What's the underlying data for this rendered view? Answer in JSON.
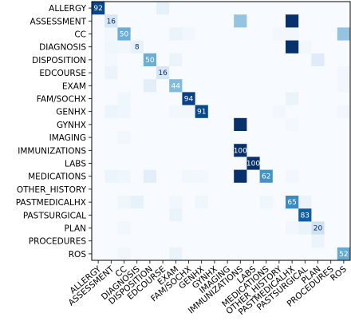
{
  "chart_data": {
    "type": "heatmap",
    "title": "",
    "xlabel": "",
    "ylabel": "",
    "row_labels": [
      "ALLERGY",
      "ASSESSMENT",
      "CC",
      "DIAGNOSIS",
      "DISPOSITION",
      "EDCOURSE",
      "EXAM",
      "FAM/SOCHX",
      "GENHX",
      "GYNHX",
      "IMAGING",
      "IMMUNIZATIONS",
      "LABS",
      "MEDICATIONS",
      "OTHER_HISTORY",
      "PASTMEDICALHX",
      "PASTSURGICAL",
      "PLAN",
      "PROCEDURES",
      "ROS"
    ],
    "col_labels": [
      "ALLERGY",
      "ASSESSMENT",
      "CC",
      "DIAGNOSIS",
      "DISPOSITION",
      "EDCOURSE",
      "EXAM",
      "FAM/SOCHX",
      "GENHX",
      "GYNHX",
      "IMAGING",
      "IMMUNIZATIONS",
      "LABS",
      "MEDICATIONS",
      "OTHER_HISTORY",
      "PASTMEDICALHX",
      "PASTSURGICAL",
      "PLAN",
      "PROCEDURES",
      "ROS"
    ],
    "values": [
      [
        92,
        0,
        0,
        0,
        0,
        8,
        0,
        0,
        0,
        0,
        0,
        0,
        0,
        0,
        0,
        0,
        0,
        0,
        0,
        0
      ],
      [
        0,
        16,
        0,
        0,
        0,
        0,
        0,
        0,
        0,
        0,
        0,
        40,
        0,
        0,
        0,
        100,
        0,
        0,
        0,
        0
      ],
      [
        0,
        3,
        50,
        0,
        0,
        0,
        6,
        3,
        0,
        0,
        0,
        0,
        0,
        0,
        3,
        3,
        0,
        0,
        0,
        40
      ],
      [
        0,
        4,
        3,
        8,
        0,
        0,
        0,
        0,
        0,
        0,
        0,
        0,
        0,
        0,
        0,
        100,
        3,
        0,
        0,
        0
      ],
      [
        0,
        2,
        0,
        0,
        50,
        0,
        6,
        0,
        0,
        0,
        0,
        0,
        0,
        0,
        0,
        0,
        0,
        12,
        0,
        0
      ],
      [
        0,
        6,
        0,
        0,
        0,
        16,
        0,
        0,
        0,
        0,
        0,
        0,
        0,
        0,
        0,
        0,
        0,
        0,
        0,
        3
      ],
      [
        0,
        0,
        0,
        0,
        10,
        0,
        44,
        0,
        0,
        0,
        0,
        0,
        0,
        0,
        0,
        0,
        0,
        0,
        0,
        3
      ],
      [
        0,
        0,
        4,
        0,
        0,
        0,
        0,
        94,
        0,
        0,
        0,
        0,
        0,
        0,
        0,
        6,
        0,
        0,
        0,
        0
      ],
      [
        0,
        5,
        4,
        0,
        0,
        0,
        3,
        3,
        91,
        0,
        0,
        0,
        0,
        0,
        3,
        0,
        0,
        0,
        0,
        3
      ],
      [
        0,
        0,
        0,
        0,
        0,
        0,
        0,
        0,
        0,
        0,
        0,
        100,
        0,
        0,
        0,
        2,
        0,
        0,
        0,
        0
      ],
      [
        0,
        0,
        3,
        0,
        0,
        0,
        0,
        0,
        0,
        0,
        0,
        0,
        0,
        0,
        0,
        0,
        0,
        0,
        0,
        0
      ],
      [
        0,
        0,
        0,
        0,
        0,
        0,
        0,
        0,
        0,
        0,
        0,
        100,
        0,
        0,
        0,
        0,
        0,
        0,
        0,
        0
      ],
      [
        0,
        0,
        0,
        0,
        0,
        0,
        0,
        0,
        0,
        0,
        0,
        0,
        100,
        0,
        0,
        0,
        0,
        0,
        0,
        0
      ],
      [
        0,
        5,
        4,
        0,
        10,
        0,
        0,
        3,
        3,
        0,
        0,
        100,
        0,
        62,
        0,
        3,
        0,
        0,
        0,
        0
      ],
      [
        0,
        0,
        0,
        0,
        0,
        0,
        0,
        0,
        0,
        0,
        0,
        0,
        0,
        0,
        0,
        0,
        0,
        0,
        0,
        0
      ],
      [
        0,
        0,
        4,
        8,
        0,
        0,
        3,
        0,
        4,
        0,
        0,
        0,
        0,
        4,
        0,
        65,
        6,
        0,
        0,
        0
      ],
      [
        0,
        0,
        0,
        0,
        0,
        0,
        6,
        0,
        0,
        0,
        0,
        0,
        0,
        0,
        0,
        0,
        83,
        0,
        0,
        0
      ],
      [
        0,
        0,
        3,
        0,
        0,
        0,
        0,
        0,
        0,
        0,
        0,
        0,
        0,
        0,
        0,
        3,
        6,
        20,
        0,
        0
      ],
      [
        0,
        0,
        0,
        0,
        0,
        0,
        0,
        0,
        0,
        0,
        0,
        0,
        0,
        0,
        0,
        0,
        0,
        6,
        0,
        0
      ],
      [
        0,
        0,
        3,
        0,
        0,
        0,
        6,
        0,
        0,
        0,
        0,
        0,
        0,
        0,
        0,
        0,
        0,
        0,
        0,
        52
      ]
    ],
    "annotated_cells": [
      {
        "row": 0,
        "col": 0,
        "label": "92"
      },
      {
        "row": 1,
        "col": 1,
        "label": "16"
      },
      {
        "row": 2,
        "col": 2,
        "label": "50"
      },
      {
        "row": 3,
        "col": 3,
        "label": "8"
      },
      {
        "row": 4,
        "col": 4,
        "label": "50"
      },
      {
        "row": 5,
        "col": 5,
        "label": "16"
      },
      {
        "row": 6,
        "col": 6,
        "label": "44"
      },
      {
        "row": 7,
        "col": 7,
        "label": "94"
      },
      {
        "row": 8,
        "col": 8,
        "label": "91"
      },
      {
        "row": 11,
        "col": 11,
        "label": "100"
      },
      {
        "row": 12,
        "col": 12,
        "label": "100"
      },
      {
        "row": 13,
        "col": 13,
        "label": "62"
      },
      {
        "row": 15,
        "col": 15,
        "label": "65"
      },
      {
        "row": 16,
        "col": 16,
        "label": "83"
      },
      {
        "row": 17,
        "col": 17,
        "label": "20"
      },
      {
        "row": 19,
        "col": 19,
        "label": "52"
      }
    ],
    "value_range": [
      0,
      100
    ],
    "colormap": "Blues",
    "grid": false,
    "legend": "none"
  }
}
